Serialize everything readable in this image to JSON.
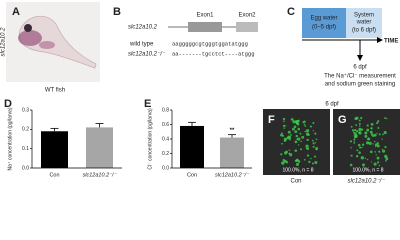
{
  "panels": {
    "A": {
      "letter": "A",
      "gene_label": "slc12a10.2",
      "caption": "WT fish"
    },
    "B": {
      "letter": "B",
      "gene": "slc12a10.2",
      "exons": [
        "Exon1",
        "Exon2"
      ],
      "rows": [
        {
          "label": "wild type",
          "sequence": "aagggggcgtgggtggatatggg"
        },
        {
          "label": "slc12a10.2⁻/⁻",
          "sequence": "aa-------tgcctct----atggg"
        }
      ]
    },
    "C": {
      "letter": "C",
      "box1": [
        "Egg water",
        "(0–5 dpf)"
      ],
      "box2": [
        "System",
        "water",
        "(to 6 dpf)"
      ],
      "axis": "TIME",
      "point": "6 dpf",
      "note": [
        "The Na⁺/Cl⁻ measurement",
        "and sodium green staining"
      ]
    },
    "FG": {
      "title": "6 dpf",
      "images": [
        {
          "letter": "F",
          "stat": "100.0%, n = 8",
          "caption": "Con"
        },
        {
          "letter": "G",
          "stat": "100.0%, n = 8",
          "caption": "slc12a10.2⁻/⁻"
        }
      ]
    }
  },
  "chart_data": [
    {
      "type": "bar",
      "panel": "D",
      "ylabel": "Na⁺ concentration (pg/larva)",
      "categories": [
        "Con",
        "slc12a10.2⁻/⁻"
      ],
      "values": [
        0.19,
        0.21
      ],
      "errors": [
        0.015,
        0.02
      ],
      "color": "#000000",
      "ylim": [
        0,
        0.3
      ],
      "yticks": [
        {
          "value": 0,
          "label": "0.0"
        },
        0.1,
        0.2,
        0.3
      ]
    },
    {
      "type": "bar",
      "panel": "E",
      "ylabel": "Cl⁻ concentration (pg/larva)",
      "categories": [
        "Con",
        "slc12a10.2⁻/⁻"
      ],
      "values": [
        0.58,
        0.42
      ],
      "errors": [
        0.05,
        0.04
      ],
      "color": "#000000",
      "ylim": [
        0,
        0.8
      ],
      "yticks": [
        {
          "value": 0,
          "label": "0.0"
        },
        0.2,
        0.4,
        0.6,
        0.8
      ],
      "annotation": "**"
    }
  ]
}
